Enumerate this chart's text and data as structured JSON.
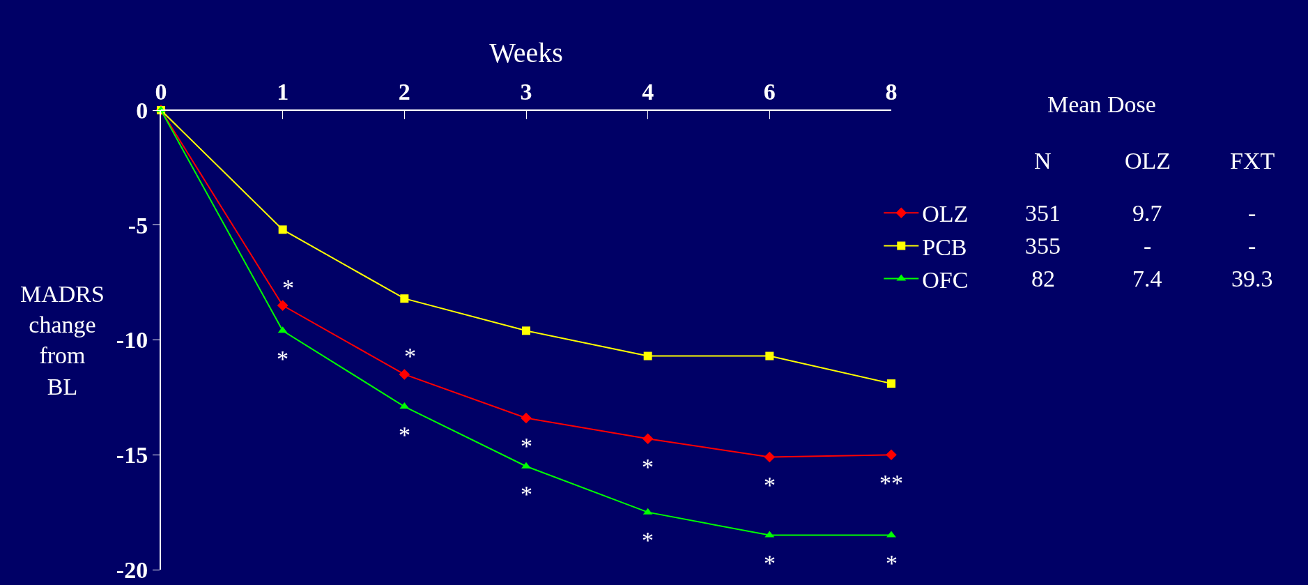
{
  "chart_data": {
    "type": "line",
    "xlabel": "Weeks",
    "ylabel": "MADRS change from BL",
    "categories": [
      "0",
      "1",
      "2",
      "3",
      "4",
      "6",
      "8"
    ],
    "ylim": [
      -20,
      0
    ],
    "yticks": [
      0,
      -5,
      -10,
      -15,
      -20
    ],
    "grid": false,
    "legend": "right",
    "series": [
      {
        "name": "OLZ",
        "color": "#ff0000",
        "marker": "diamond",
        "values": [
          0,
          -8.5,
          -11.5,
          -13.4,
          -14.3,
          -15.1,
          -15.0
        ]
      },
      {
        "name": "PCB",
        "color": "#ffff00",
        "marker": "square",
        "values": [
          0,
          -5.2,
          -8.2,
          -9.6,
          -10.7,
          -10.7,
          -11.9
        ]
      },
      {
        "name": "OFC",
        "color": "#00ff00",
        "marker": "triangle",
        "values": [
          0,
          -9.6,
          -12.9,
          -15.5,
          -17.5,
          -18.5,
          -18.5
        ]
      }
    ],
    "annotations": [
      "Mean Dose",
      "N",
      "OLZ",
      "FXT",
      "351",
      "9.7",
      "-",
      "355",
      "-",
      "-",
      "82",
      "7.4",
      "39.3",
      {
        "text": "*",
        "x": "1",
        "y": -8.5
      },
      {
        "text": "*",
        "x": "1",
        "y": -9.6
      },
      {
        "text": "*",
        "x": "2",
        "y": -11.5
      },
      {
        "text": "*",
        "x": "2",
        "y": -12.9
      },
      {
        "text": "*",
        "x": "3",
        "y": -13.4
      },
      {
        "text": "*",
        "x": "3",
        "y": -15.5
      },
      {
        "text": "*",
        "x": "4",
        "y": -14.3
      },
      {
        "text": "*",
        "x": "4",
        "y": -17.5
      },
      {
        "text": "*",
        "x": "6",
        "y": -15.1
      },
      {
        "text": "*",
        "x": "6",
        "y": -18.5
      },
      {
        "text": "**",
        "x": "8",
        "y": -15.0
      },
      {
        "text": "*",
        "x": "8",
        "y": -18.5
      }
    ]
  }
}
